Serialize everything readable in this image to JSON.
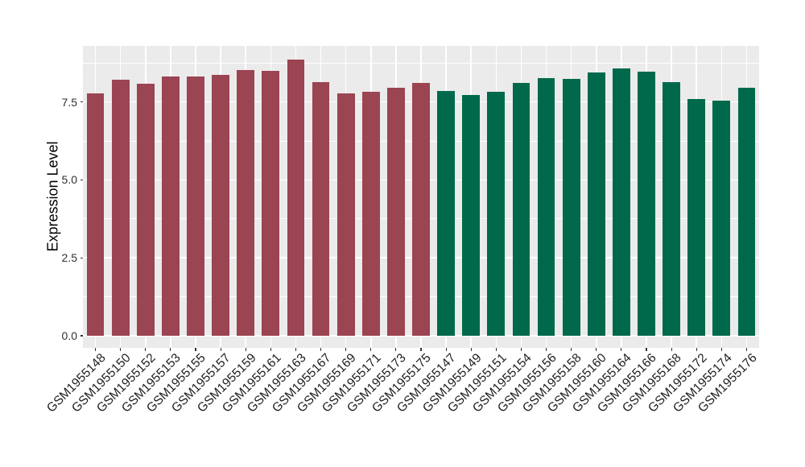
{
  "chart_data": {
    "type": "bar",
    "title": "",
    "xlabel": "",
    "ylabel": "Expression Level",
    "ylim": [
      0,
      9.3
    ],
    "ytick_values": [
      0,
      2.5,
      5,
      7.5
    ],
    "ytick_labels": [
      "0.0",
      "2.5",
      "5.0",
      "7.5"
    ],
    "grid": true,
    "legend": false,
    "panel_background": "#EBEBEB",
    "grid_color": "#FFFFFF",
    "tick_color": "#333333",
    "categories": [
      "GSM1955148",
      "GSM1955150",
      "GSM1955152",
      "GSM1955153",
      "GSM1955155",
      "GSM1955157",
      "GSM1955159",
      "GSM1955161",
      "GSM1955163",
      "GSM1955167",
      "GSM1955169",
      "GSM1955171",
      "GSM1955173",
      "GSM1955175",
      "GSM1955147",
      "GSM1955149",
      "GSM1955151",
      "GSM1955154",
      "GSM1955156",
      "GSM1955158",
      "GSM1955160",
      "GSM1955164",
      "GSM1955166",
      "GSM1955168",
      "GSM1955172",
      "GSM1955174",
      "GSM1955176"
    ],
    "values": [
      7.77,
      8.2,
      8.08,
      8.31,
      8.31,
      8.36,
      8.52,
      8.5,
      8.86,
      8.14,
      7.77,
      7.83,
      7.96,
      8.11,
      7.86,
      7.73,
      7.82,
      8.11,
      8.26,
      8.24,
      8.45,
      8.57,
      8.48,
      8.13,
      7.59,
      7.54,
      7.95
    ],
    "bar_color_index": [
      0,
      0,
      0,
      0,
      0,
      0,
      0,
      0,
      0,
      0,
      0,
      0,
      0,
      0,
      1,
      1,
      1,
      1,
      1,
      1,
      1,
      1,
      1,
      1,
      1,
      1,
      1
    ],
    "bar_colors": [
      "#9B4452",
      "#00694B"
    ]
  }
}
